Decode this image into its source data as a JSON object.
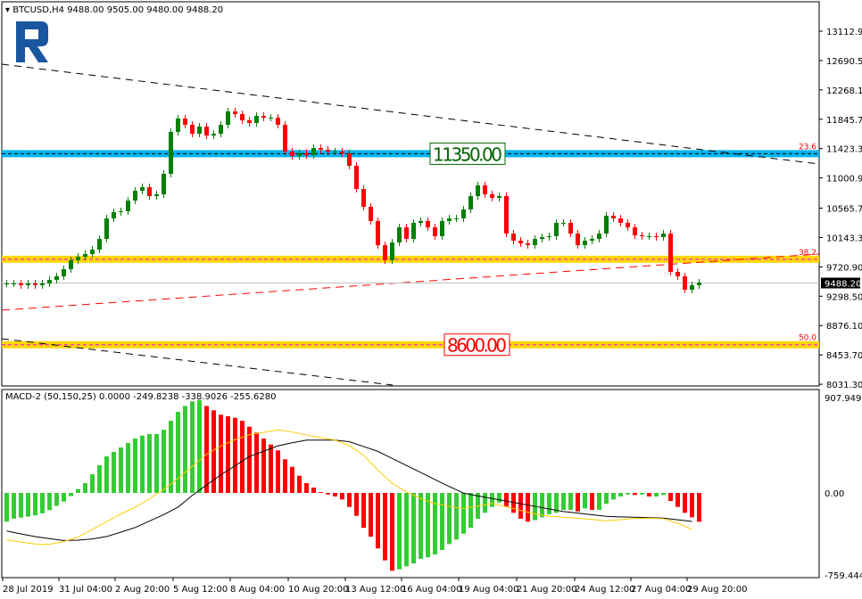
{
  "header": {
    "symbol_line": "BTCUSD,H4  9488.00 9505.00 9480.00 9488.20",
    "indicator_line": "MACD-2 (50,150,25) 0.0000 -249.8238 -338.9026 -255.6280"
  },
  "colors": {
    "bull": "#008000",
    "bear": "#ff0000",
    "hist_up": "#33cc33",
    "hist_down": "#ff0000",
    "resistance_band": "#00b4f0",
    "support_band": "#ffd700",
    "fib_dash": "#ff00ff",
    "trend_red": "#ff0000",
    "macd_line": "#000000",
    "signal_line": "#ffcc00",
    "logo": "#1a55a0"
  },
  "chart_data": [
    {
      "type": "candlestick",
      "symbol": "BTCUSD",
      "timeframe": "H4",
      "ylim": [
        8031.3,
        13112.9
      ],
      "y_ticks": [
        "13112.90",
        "12690.50",
        "12268.10",
        "11845.70",
        "11423.30",
        "11000.90",
        "10565.70",
        "10143.30",
        "9720.90",
        "9298.50",
        "8876.10",
        "8453.70",
        "8031.30"
      ],
      "x_ticks": [
        "28 Jul 2019",
        "31 Jul 04:00",
        "2 Aug 20:00",
        "5 Aug 12:00",
        "8 Aug 04:00",
        "10 Aug 20:00",
        "13 Aug 12:00",
        "16 Aug 04:00",
        "19 Aug 04:00",
        "21 Aug 20:00",
        "24 Aug 12:00",
        "27 Aug 04:00",
        "29 Aug 20:00"
      ],
      "current_price": "9488.20",
      "closes": [
        9482,
        9482,
        9456,
        9482,
        9456,
        9482,
        9533,
        9585,
        9687,
        9816,
        9867,
        9905,
        9970,
        10123,
        10418,
        10508,
        10521,
        10675,
        10816,
        10868,
        10739,
        10765,
        11060,
        11663,
        11856,
        11766,
        11637,
        11740,
        11612,
        11637,
        11766,
        11958,
        11920,
        11830,
        11792,
        11894,
        11868,
        11868,
        11766,
        11381,
        11317,
        11356,
        11330,
        11432,
        11407,
        11381,
        11381,
        11356,
        11176,
        10842,
        10585,
        10380,
        10033,
        9816,
        10072,
        10290,
        10123,
        10354,
        10380,
        10290,
        10162,
        10380,
        10418,
        10418,
        10547,
        10739,
        10893,
        10765,
        10714,
        10739,
        10200,
        10098,
        10059,
        10033,
        10123,
        10149,
        10162,
        10354,
        10354,
        10200,
        10033,
        10098,
        10123,
        10200,
        10457,
        10418,
        10354,
        10290,
        10175,
        10162,
        10162,
        10149,
        10200,
        9649,
        9585,
        9392,
        9456,
        9495
      ],
      "levels": [
        {
          "price": 11350,
          "label": "11350.00",
          "fib": "23.6",
          "kind": "resistance"
        },
        {
          "price": 9830,
          "label": "",
          "fib": "38.2",
          "kind": "support"
        },
        {
          "price": 8600,
          "label": "8600.00",
          "fib": "50.0",
          "kind": "support"
        }
      ]
    },
    {
      "type": "bar+line",
      "name": "MACD-2 (50,150,25)",
      "ylim": [
        -759.4446,
        907.9498
      ],
      "y_ticks": [
        "907.9498",
        "0.00",
        "-759.4446"
      ],
      "histogram": [
        -268,
        -240,
        -230,
        -220,
        -210,
        -190,
        -160,
        -120,
        -80,
        -30,
        36,
        91,
        174,
        257,
        340,
        382,
        423,
        465,
        506,
        534,
        548,
        548,
        589,
        672,
        755,
        810,
        852,
        866,
        810,
        769,
        728,
        714,
        700,
        672,
        617,
        562,
        506,
        451,
        396,
        313,
        243,
        160,
        91,
        50,
        8,
        -14,
        -33,
        -61,
        -130,
        -213,
        -324,
        -407,
        -517,
        -628,
        -725,
        -711,
        -683,
        -656,
        -614,
        -600,
        -573,
        -531,
        -476,
        -434,
        -379,
        -324,
        -241,
        -185,
        -130,
        -89,
        -130,
        -185,
        -241,
        -268,
        -254,
        -227,
        -199,
        -185,
        -158,
        -158,
        -172,
        -144,
        -158,
        -158,
        -102,
        -61,
        -33,
        -14,
        -19,
        -14,
        -33,
        -33,
        -19,
        -75,
        -130,
        -185,
        -227,
        -268
      ],
      "line_black": [
        -355,
        -382,
        -407,
        -425,
        -443,
        -440,
        -428,
        -406,
        -365,
        -322,
        -262,
        -202,
        -132,
        -23,
        74,
        168,
        254,
        340,
        388,
        439,
        467,
        492,
        492,
        492,
        477,
        432,
        387,
        321,
        256,
        190,
        124,
        60,
        -2,
        -28,
        -52,
        -76,
        -101,
        -125,
        -149,
        -173,
        -188,
        -203,
        -218,
        -223,
        -226,
        -230,
        -234,
        -250,
        -266
      ],
      "line_yellow": [
        -436,
        -458,
        -476,
        -478,
        -452,
        -412,
        -340,
        -268,
        -196,
        -132,
        -55,
        33,
        135,
        247,
        360,
        437,
        497,
        542,
        564,
        586,
        567,
        539,
        515,
        492,
        440,
        351,
        212,
        90,
        9,
        -53,
        -100,
        -125,
        -143,
        -122,
        -98,
        -128,
        -163,
        -195,
        -217,
        -227,
        -236,
        -247,
        -259,
        -249,
        -237,
        -236,
        -240,
        -281,
        -341
      ]
    }
  ]
}
